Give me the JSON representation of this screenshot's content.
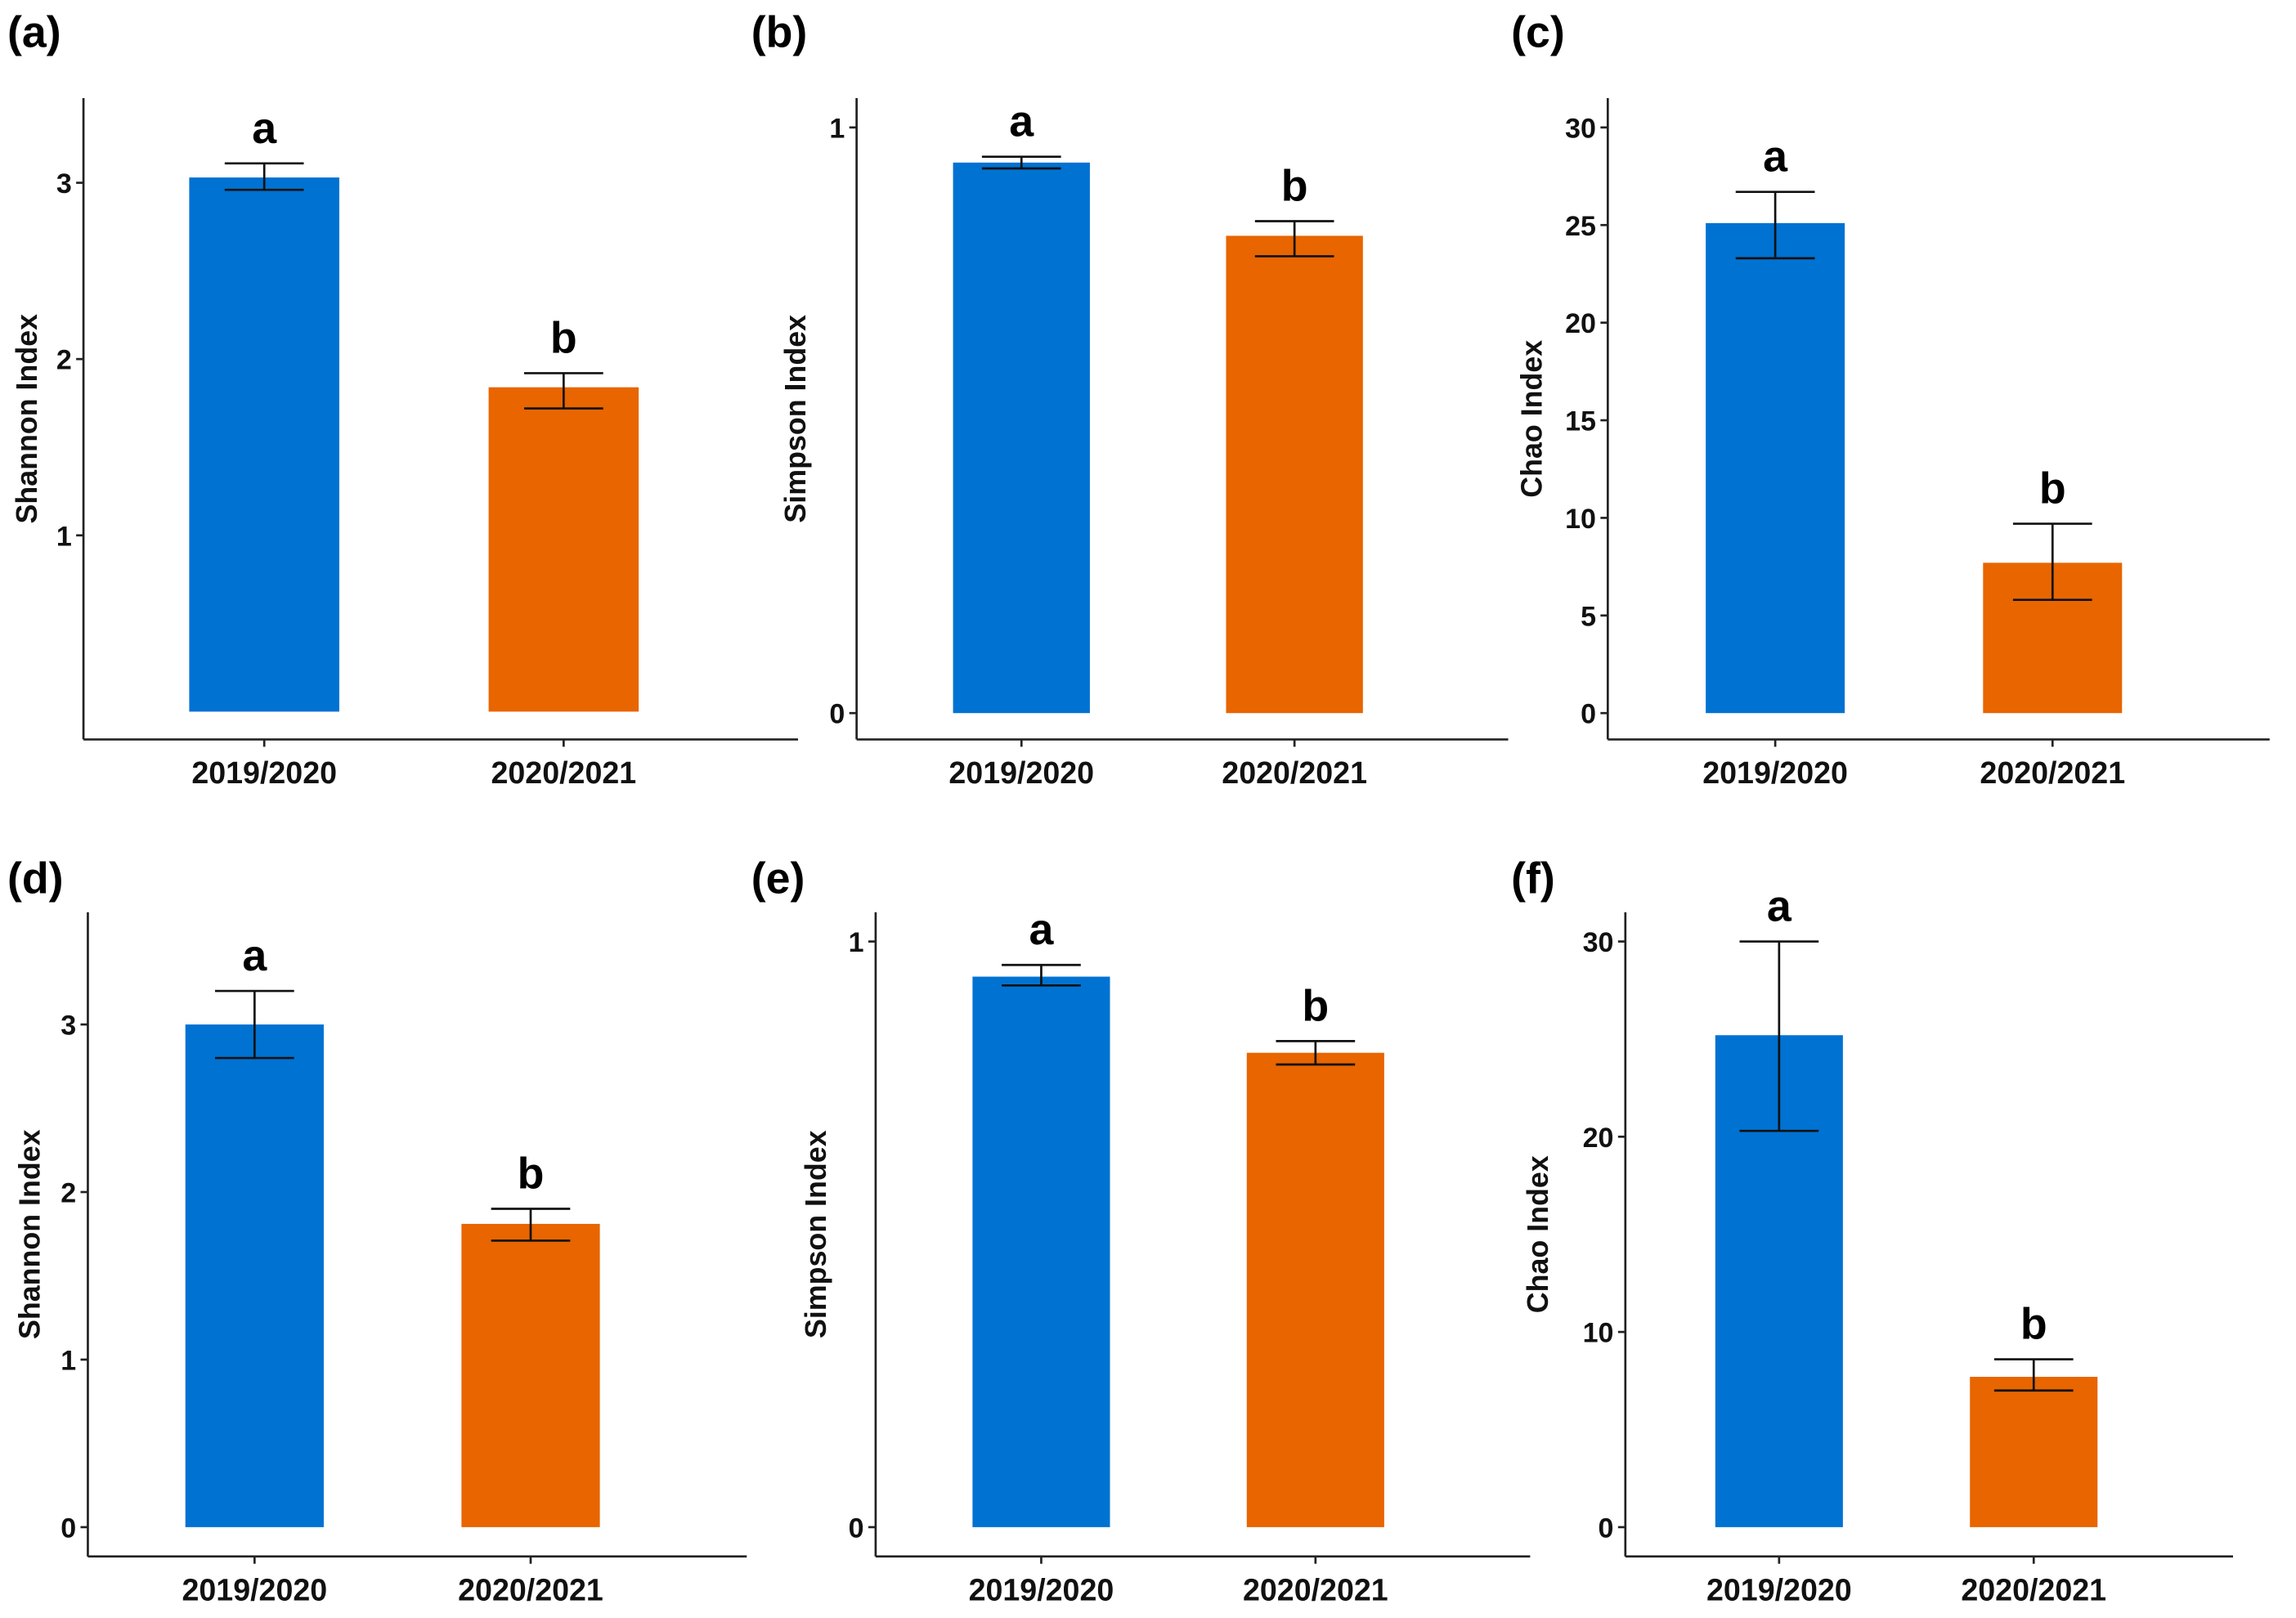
{
  "chart_data": [
    {
      "panel": "(a)",
      "type": "bar",
      "categories": [
        "2019/2020",
        "2020/2021"
      ],
      "values": [
        3.03,
        1.84
      ],
      "error_low": [
        2.96,
        1.72
      ],
      "error_high": [
        3.11,
        1.92
      ],
      "significance": [
        "a",
        "b"
      ],
      "ylabel": "Shannon Index",
      "yticks": [
        1,
        2,
        3
      ],
      "ylim": [
        -0.16,
        3.48
      ],
      "xlabel": "",
      "colors": [
        "#0072D2",
        "#E86500"
      ]
    },
    {
      "panel": "(b)",
      "type": "bar",
      "categories": [
        "2019/2020",
        "2020/2021"
      ],
      "values": [
        0.94,
        0.815
      ],
      "error_low": [
        0.93,
        0.78
      ],
      "error_high": [
        0.95,
        0.84
      ],
      "significance": [
        "a",
        "b"
      ],
      "ylabel": "Simpson Index",
      "yticks": [
        0,
        1
      ],
      "ylim": [
        -0.045,
        1.05
      ],
      "xlabel": "",
      "colors": [
        "#0072D2",
        "#E86500"
      ]
    },
    {
      "panel": "(c)",
      "type": "bar",
      "categories": [
        "2019/2020",
        "2020/2021"
      ],
      "values": [
        25.1,
        7.7
      ],
      "error_low": [
        23.3,
        5.8
      ],
      "error_high": [
        26.7,
        9.7
      ],
      "significance": [
        "a",
        "b"
      ],
      "ylabel": "Chao Index",
      "yticks": [
        0,
        5,
        10,
        15,
        20,
        25,
        30
      ],
      "ylim": [
        -1.4,
        31.5
      ],
      "xlabel": "",
      "colors": [
        "#0072D2",
        "#E86500"
      ]
    },
    {
      "panel": "(d)",
      "type": "bar",
      "categories": [
        "2019/2020",
        "2020/2021"
      ],
      "values": [
        3.0,
        1.81
      ],
      "error_low": [
        2.8,
        1.71
      ],
      "error_high": [
        3.2,
        1.9
      ],
      "significance": [
        "a",
        "b"
      ],
      "ylabel": "Shannon Index",
      "yticks": [
        0,
        1,
        2,
        3
      ],
      "ylim": [
        -0.18,
        3.67
      ],
      "xlabel": "",
      "colors": [
        "#0072D2",
        "#E86500"
      ]
    },
    {
      "panel": "(e)",
      "type": "bar",
      "categories": [
        "2019/2020",
        "2020/2021"
      ],
      "values": [
        0.94,
        0.81
      ],
      "error_low": [
        0.925,
        0.79
      ],
      "error_high": [
        0.96,
        0.83
      ],
      "significance": [
        "a",
        "b"
      ],
      "ylabel": "Simpson Index",
      "yticks": [
        0,
        1
      ],
      "ylim": [
        -0.05,
        1.05
      ],
      "xlabel": "",
      "colors": [
        "#0072D2",
        "#E86500"
      ]
    },
    {
      "panel": "(f)",
      "type": "bar",
      "categories": [
        "2019/2020",
        "2020/2021"
      ],
      "values": [
        25.2,
        7.7
      ],
      "error_low": [
        20.3,
        7.0
      ],
      "error_high": [
        30.0,
        8.6
      ],
      "significance": [
        "a",
        "b"
      ],
      "ylabel": "Chao Index",
      "yticks": [
        0,
        10,
        20,
        30
      ],
      "ylim": [
        -1.5,
        31.5
      ],
      "xlabel": "",
      "colors": [
        "#0072D2",
        "#E86500"
      ]
    }
  ]
}
